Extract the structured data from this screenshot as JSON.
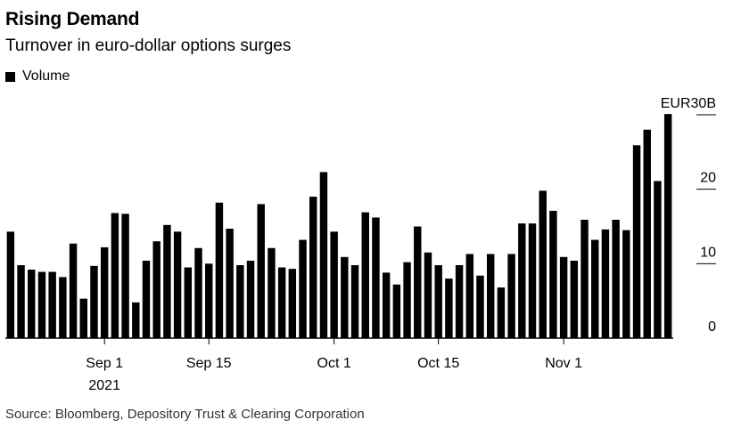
{
  "chart_data": {
    "type": "bar",
    "title": "Rising Demand",
    "subtitle": "Turnover in euro-dollar options surges",
    "legend": [
      {
        "name": "Volume",
        "color": "#000000"
      }
    ],
    "legend_position": "top-left",
    "y_unit": "EUR30B",
    "ylim": [
      0,
      30
    ],
    "y_ticks": [
      {
        "value": 0,
        "label": "0"
      },
      {
        "value": 10,
        "label": "10"
      },
      {
        "value": 20,
        "label": "20"
      },
      {
        "value": 30,
        "label": "EUR30B"
      }
    ],
    "x_ticks": [
      {
        "index": 9,
        "label": "Sep 1",
        "sublabel": "2021"
      },
      {
        "index": 19,
        "label": "Sep 15",
        "sublabel": ""
      },
      {
        "index": 31,
        "label": "Oct 1",
        "sublabel": ""
      },
      {
        "index": 41,
        "label": "Oct 15",
        "sublabel": ""
      },
      {
        "index": 53,
        "label": "Nov 1",
        "sublabel": ""
      }
    ],
    "series": [
      {
        "name": "Volume",
        "values": [
          14.3,
          9.8,
          9.2,
          8.9,
          8.9,
          8.2,
          12.7,
          5.3,
          9.7,
          12.2,
          16.8,
          16.7,
          4.8,
          10.4,
          13.0,
          15.2,
          14.3,
          9.5,
          12.1,
          10.0,
          18.2,
          14.7,
          9.8,
          10.4,
          18.0,
          12.1,
          9.5,
          9.3,
          13.2,
          19.0,
          22.3,
          14.3,
          10.9,
          9.8,
          16.9,
          16.2,
          8.8,
          7.2,
          10.2,
          15.0,
          11.5,
          9.8,
          8.0,
          9.8,
          11.3,
          8.4,
          11.3,
          6.8,
          11.3,
          15.4,
          15.4,
          19.8,
          17.1,
          10.9,
          10.4,
          15.9,
          13.2,
          14.6,
          15.9,
          14.5,
          25.9,
          28.0,
          21.1,
          30.1
        ]
      }
    ],
    "grid": false
  },
  "source": "Source: Bloomberg, Depository Trust & Clearing Corporation"
}
